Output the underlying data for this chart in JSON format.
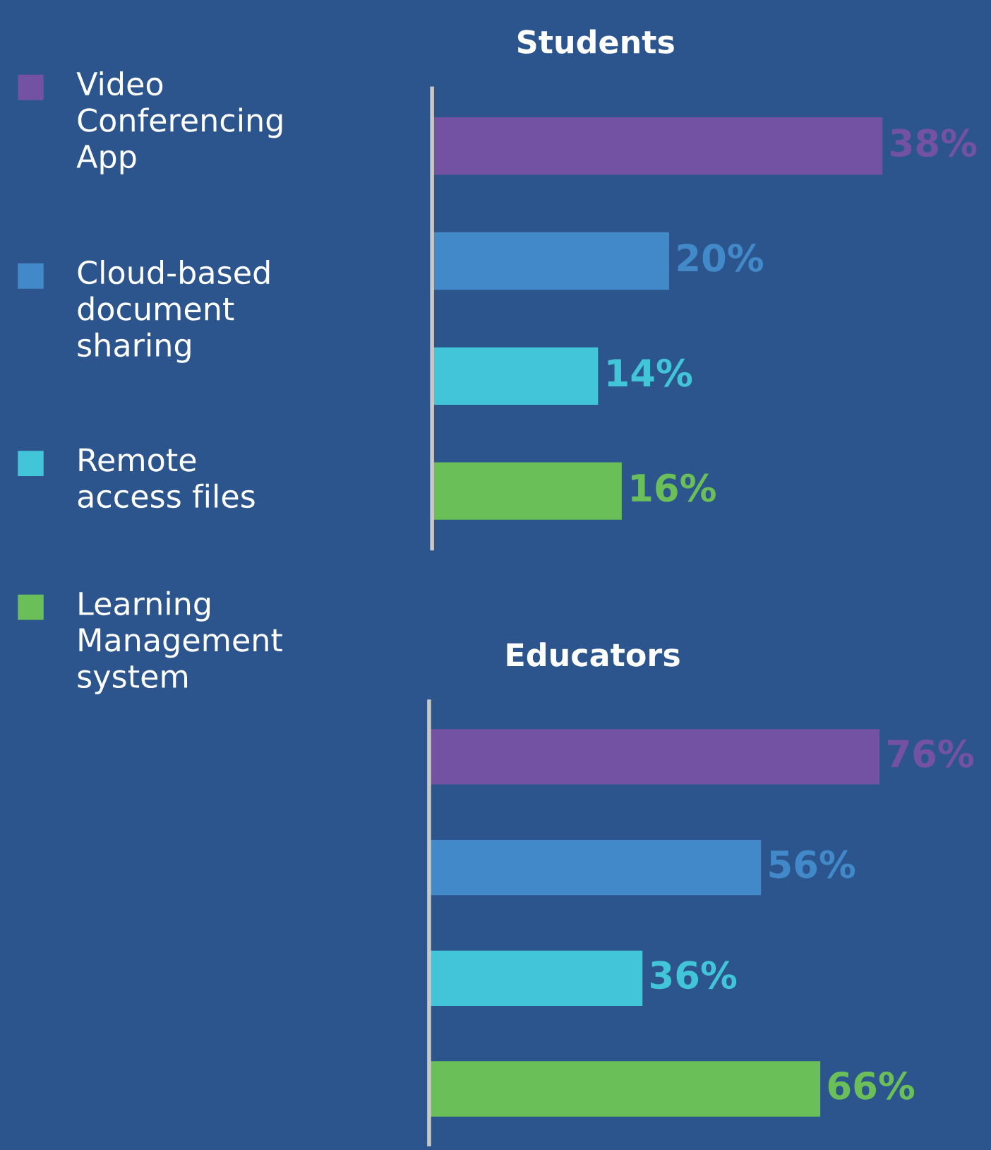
{
  "chart_data": [
    {
      "type": "bar",
      "orientation": "horizontal",
      "title": "Students",
      "categories": [
        null,
        null,
        null,
        null
      ],
      "annotations": [
        "Video\nConferencing\nApp",
        "Cloud-based\ndocument\nsharing",
        "Remote\naccess files",
        "Learning\nManagement\nsystem"
      ],
      "colors": [
        "#7352a3",
        "#4189c8",
        "#42c4d9",
        "#6abf59"
      ],
      "values": [
        38,
        20,
        14,
        16
      ],
      "value_labels": [
        "38%",
        "20%",
        "14%",
        "16%"
      ]
    },
    {
      "type": "bar",
      "orientation": "horizontal",
      "title": "Educators",
      "categories": [
        null,
        null,
        null,
        null
      ],
      "colors": [
        "#7352a3",
        "#4189c8",
        "#42c4d9",
        "#6abf59"
      ],
      "values": [
        76,
        56,
        36,
        66
      ],
      "value_labels": [
        "76%",
        "56%",
        "36%",
        "66%"
      ]
    }
  ]
}
